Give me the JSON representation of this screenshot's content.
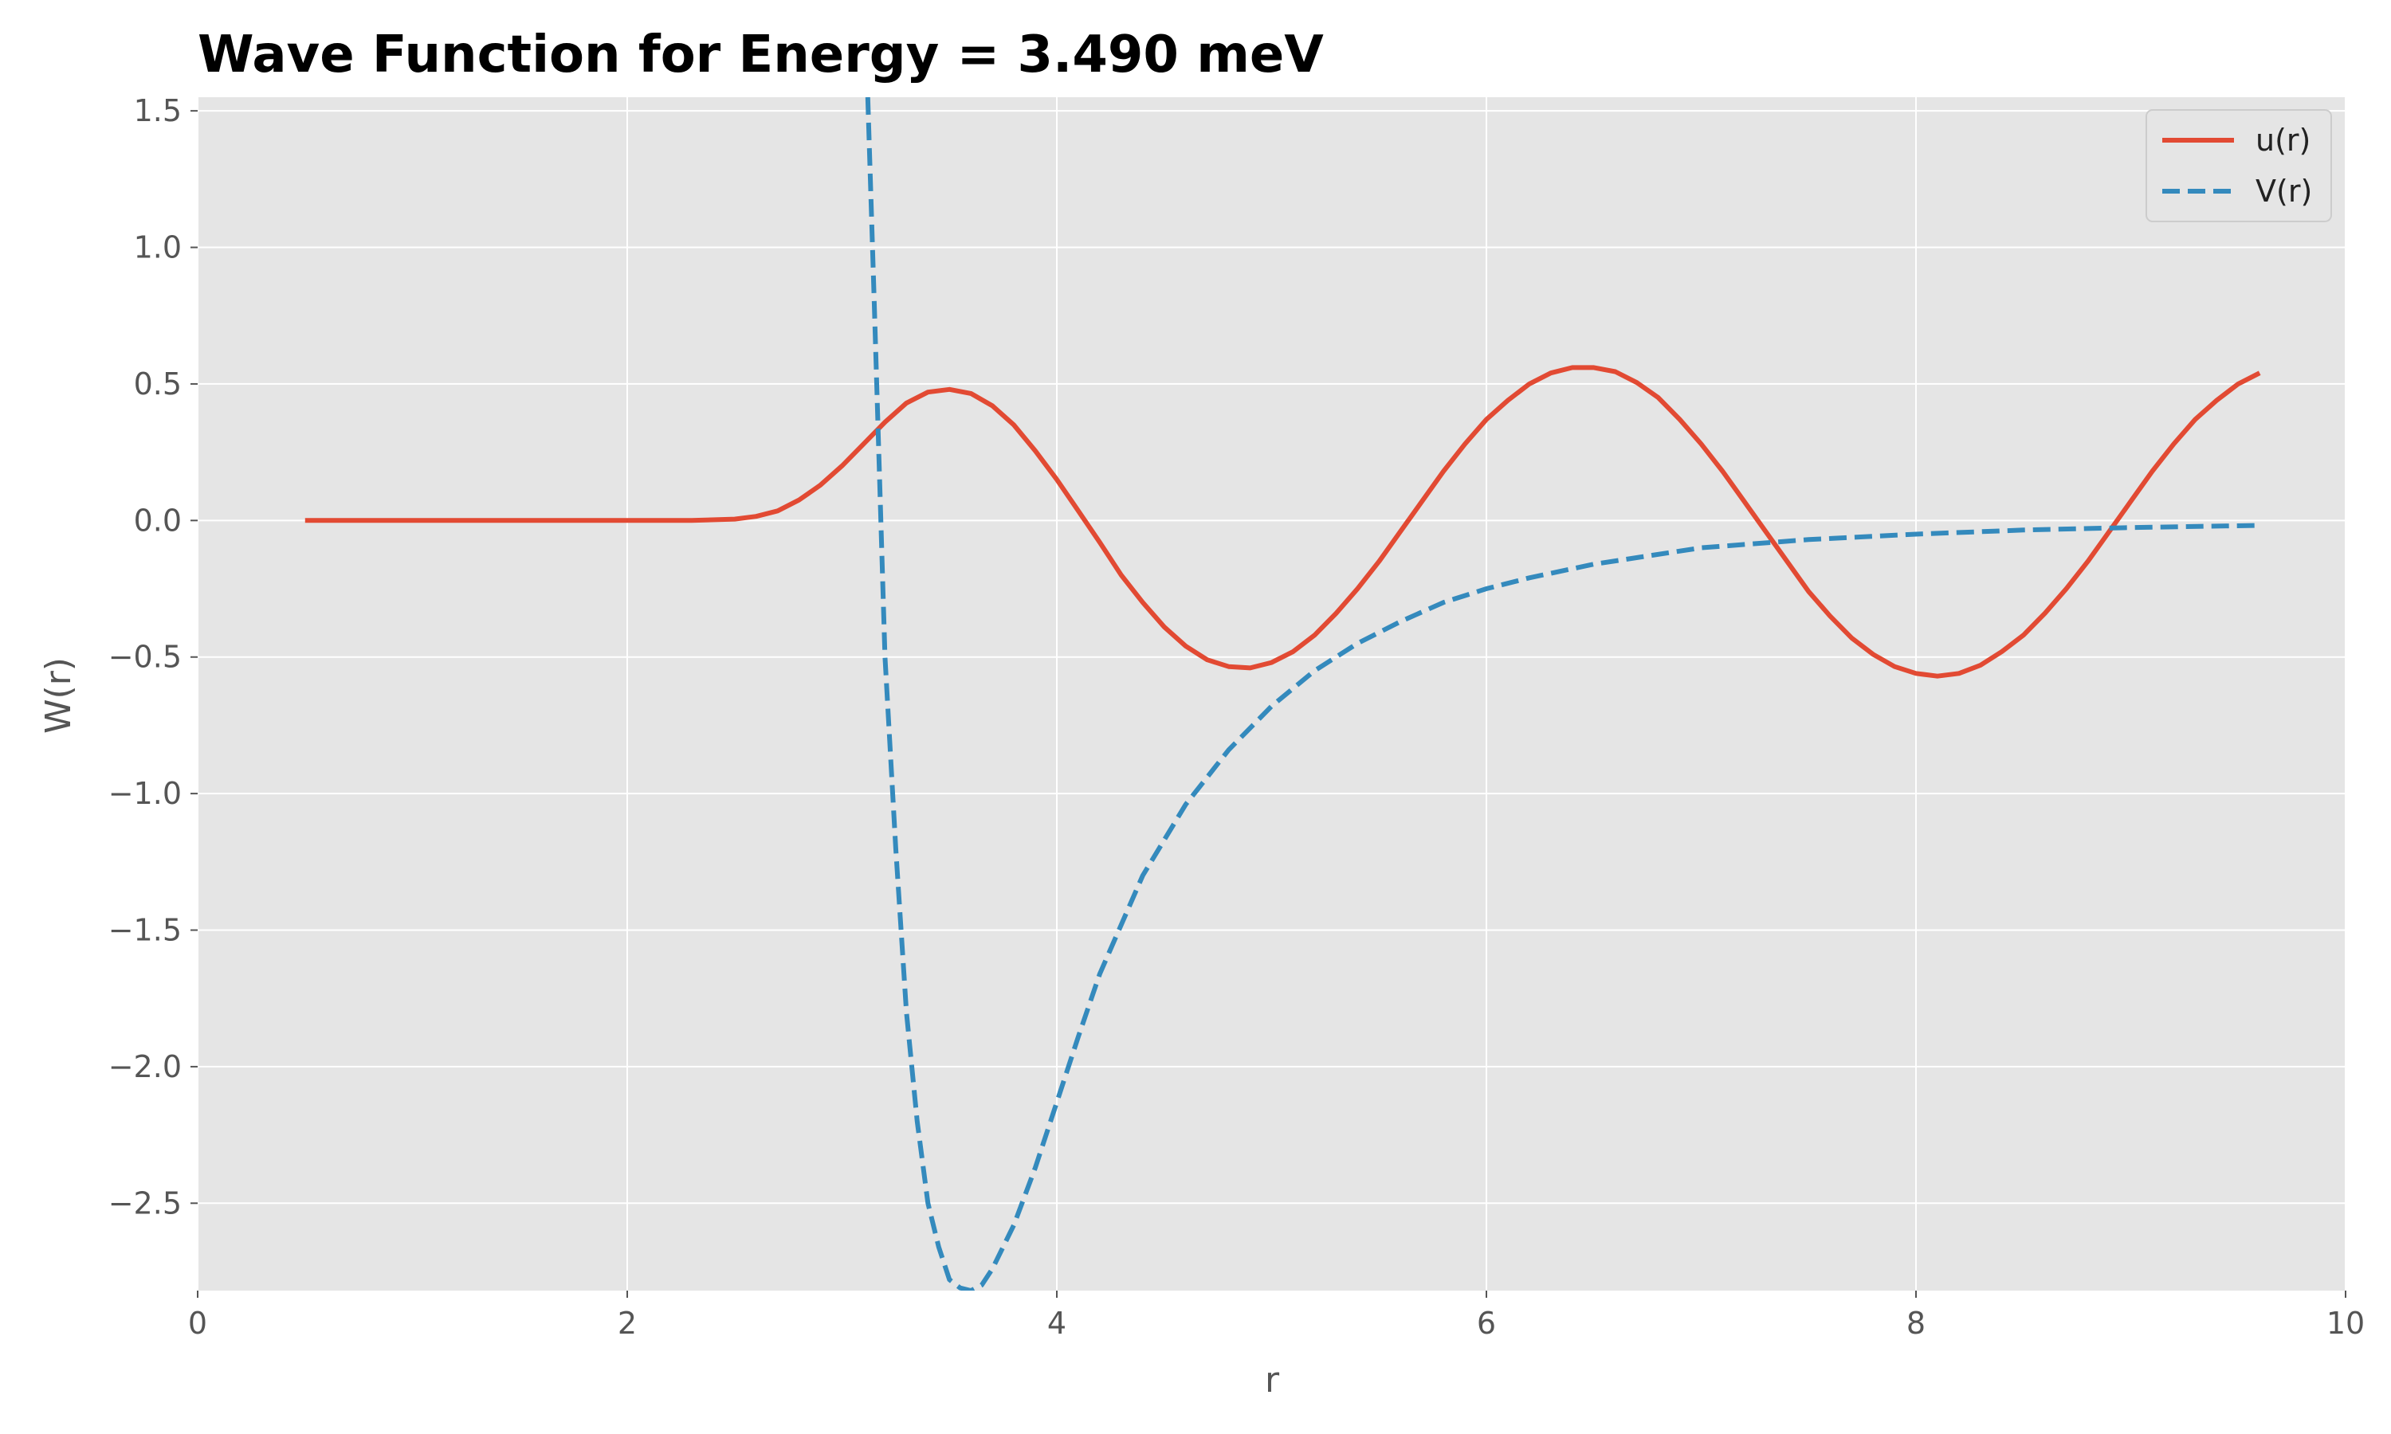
{
  "chart_data": {
    "type": "line",
    "title": "Wave Function for Energy = 3.490 meV",
    "xlabel": "r",
    "ylabel": "W(r)",
    "xlim": [
      0,
      10
    ],
    "ylim": [
      -2.82,
      1.55
    ],
    "xticks": [
      0,
      2,
      4,
      6,
      8,
      10
    ],
    "xtick_labels": [
      "0",
      "2",
      "4",
      "6",
      "8",
      "10"
    ],
    "yticks": [
      1.5,
      1.0,
      0.5,
      0.0,
      -0.5,
      -1.0,
      -1.5,
      -2.0,
      -2.5
    ],
    "ytick_labels": [
      "1.5",
      "1.0",
      "0.5",
      "0.0",
      "−0.5",
      "−1.0",
      "−1.5",
      "−2.0",
      "−2.5"
    ],
    "grid": true,
    "legend_position": "top-right",
    "series": [
      {
        "name": "u(r)",
        "color": "#e24a33",
        "style": "solid",
        "x": [
          0.5,
          1.0,
          1.5,
          2.0,
          2.3,
          2.5,
          2.6,
          2.7,
          2.8,
          2.9,
          3.0,
          3.1,
          3.2,
          3.3,
          3.4,
          3.5,
          3.6,
          3.7,
          3.8,
          3.9,
          4.0,
          4.1,
          4.2,
          4.3,
          4.4,
          4.5,
          4.6,
          4.7,
          4.8,
          4.9,
          5.0,
          5.1,
          5.2,
          5.3,
          5.4,
          5.5,
          5.6,
          5.7,
          5.8,
          5.9,
          6.0,
          6.1,
          6.2,
          6.3,
          6.4,
          6.5,
          6.6,
          6.7,
          6.8,
          6.9,
          7.0,
          7.1,
          7.2,
          7.3,
          7.4,
          7.5,
          7.6,
          7.7,
          7.8,
          7.9,
          8.0,
          8.1,
          8.2,
          8.3,
          8.4,
          8.5,
          8.6,
          8.7,
          8.8,
          8.9,
          9.0,
          9.1,
          9.2,
          9.3,
          9.4,
          9.5,
          9.6
        ],
        "y": [
          0.0,
          0.0,
          0.0,
          0.0,
          0.0,
          0.005,
          0.015,
          0.035,
          0.075,
          0.13,
          0.2,
          0.28,
          0.36,
          0.43,
          0.47,
          0.48,
          0.465,
          0.42,
          0.35,
          0.255,
          0.15,
          0.035,
          -0.08,
          -0.2,
          -0.3,
          -0.39,
          -0.46,
          -0.51,
          -0.535,
          -0.54,
          -0.52,
          -0.48,
          -0.42,
          -0.34,
          -0.25,
          -0.15,
          -0.04,
          0.07,
          0.18,
          0.28,
          0.37,
          0.44,
          0.5,
          0.54,
          0.56,
          0.56,
          0.545,
          0.505,
          0.45,
          0.37,
          0.28,
          0.18,
          0.07,
          -0.04,
          -0.15,
          -0.26,
          -0.35,
          -0.43,
          -0.49,
          -0.535,
          -0.56,
          -0.57,
          -0.56,
          -0.53,
          -0.48,
          -0.42,
          -0.34,
          -0.25,
          -0.15,
          -0.04,
          0.07,
          0.18,
          0.28,
          0.37,
          0.44,
          0.5,
          0.54
        ]
      },
      {
        "name": "V(r)",
        "color": "#348abd",
        "style": "dashed",
        "x": [
          3.12,
          3.15,
          3.2,
          3.25,
          3.3,
          3.35,
          3.4,
          3.45,
          3.5,
          3.55,
          3.6,
          3.65,
          3.7,
          3.8,
          3.9,
          4.0,
          4.1,
          4.2,
          4.4,
          4.6,
          4.8,
          5.0,
          5.2,
          5.4,
          5.6,
          5.8,
          6.0,
          6.2,
          6.5,
          7.0,
          7.5,
          8.0,
          8.5,
          9.0,
          9.6
        ],
        "y": [
          1.55,
          0.8,
          -0.5,
          -1.2,
          -1.8,
          -2.2,
          -2.5,
          -2.66,
          -2.78,
          -2.81,
          -2.82,
          -2.8,
          -2.74,
          -2.58,
          -2.37,
          -2.13,
          -1.89,
          -1.66,
          -1.3,
          -1.04,
          -0.84,
          -0.68,
          -0.55,
          -0.45,
          -0.37,
          -0.3,
          -0.25,
          -0.21,
          -0.16,
          -0.1,
          -0.07,
          -0.05,
          -0.035,
          -0.026,
          -0.018
        ]
      }
    ]
  }
}
